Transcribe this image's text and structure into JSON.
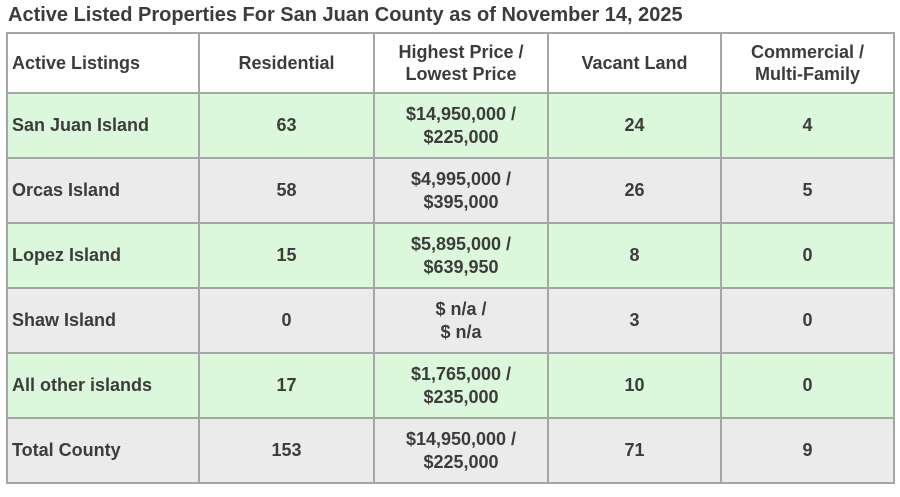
{
  "title": "Active Listed Properties For San Juan County as of November 14, 2025",
  "colors": {
    "row_green": "#dcf8dc",
    "row_gray": "#ebebeb",
    "header_bg": "#ffffff",
    "border": "#a6a6a6",
    "text": "#3c3c3c"
  },
  "table": {
    "headers": [
      "Active Listings",
      "Residential",
      "Highest Price /\nLowest Price",
      "Vacant Land",
      "Commercial /\nMulti-Family"
    ],
    "rows": [
      {
        "label": "San Juan Island",
        "residential": "63",
        "price": "$14,950,000 /\n$225,000",
        "vacant_land": "24",
        "commercial_multi_family": "4"
      },
      {
        "label": "Orcas Island",
        "residential": "58",
        "price": "$4,995,000 /\n$395,000",
        "vacant_land": "26",
        "commercial_multi_family": "5"
      },
      {
        "label": "Lopez Island",
        "residential": "15",
        "price": "$5,895,000 /\n$639,950",
        "vacant_land": "8",
        "commercial_multi_family": "0"
      },
      {
        "label": "Shaw Island",
        "residential": "0",
        "price": "$ n/a  /\n$ n/a",
        "vacant_land": "3",
        "commercial_multi_family": "0"
      },
      {
        "label": "All other islands",
        "residential": "17",
        "price": "$1,765,000 /\n$235,000",
        "vacant_land": "10",
        "commercial_multi_family": "0"
      },
      {
        "label": "Total County",
        "residential": "153",
        "price": "$14,950,000 /\n$225,000",
        "vacant_land": "71",
        "commercial_multi_family": "9"
      }
    ]
  },
  "chart_data": {
    "type": "table",
    "title": "Active Listed Properties For San Juan County as of November 14, 2025",
    "columns": [
      "Active Listings",
      "Residential",
      "Highest Price / Lowest Price",
      "Vacant Land",
      "Commercial / Multi-Family"
    ],
    "rows": [
      [
        "San Juan Island",
        63,
        "$14,950,000 / $225,000",
        24,
        4
      ],
      [
        "Orcas Island",
        58,
        "$4,995,000 / $395,000",
        26,
        5
      ],
      [
        "Lopez Island",
        15,
        "$5,895,000 / $639,950",
        8,
        0
      ],
      [
        "Shaw Island",
        0,
        "$ n/a / $ n/a",
        3,
        0
      ],
      [
        "All other islands",
        17,
        "$1,765,000 / $235,000",
        10,
        0
      ],
      [
        "Total County",
        153,
        "$14,950,000 / $225,000",
        71,
        9
      ]
    ]
  }
}
